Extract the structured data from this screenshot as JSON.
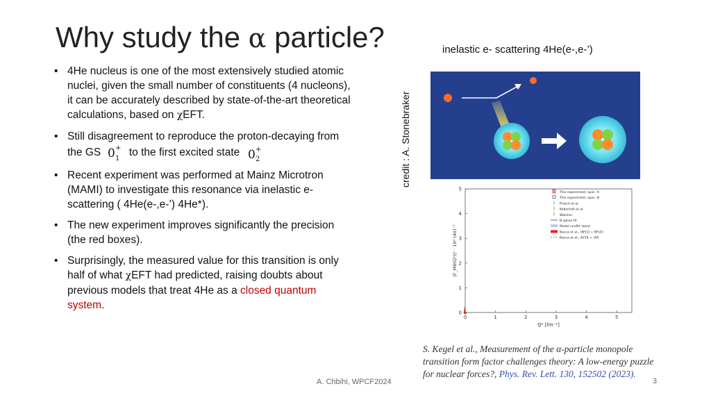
{
  "title_prefix": "Why study the ",
  "title_symbol": "α",
  "title_suffix": " particle?",
  "subtitle": "inelastic e- scattering  4He(e-,e-’)",
  "credit": "credit : A. Stonebraker",
  "bullets": {
    "b1_pre": "4He nucleus is one of the most extensively studied atomic nuclei, given the small number of constituents (4 nucleons), it can be accurately described by state-of-the-art theoretical calculations, based on ",
    "chi": "χ",
    "b1_post": "EFT.",
    "b2_pre": "Still disagreement to reproduce the proton-decaying from the GS",
    "b2_mid": "to the first excited state",
    "state_gs": {
      "base": "0",
      "sup": "+",
      "sub": "1"
    },
    "state_ex": {
      "base": "0",
      "sup": "+",
      "sub": "2"
    },
    "b3": "Recent experiment was performed at Mainz Microtron (MAMI) to investigate this resonance via inelastic e- scattering ( 4He(e-,e-’) 4He*).",
    "b4": "The new experiment improves significantly the precision (the red boxes).",
    "b5_pre": "Surprisingly,   the measured value for this transition is only half of what ",
    "b5_post": "EFT had predicted, raising doubts about previous models that treat 4He as a ",
    "b5_red": "closed quantum system",
    "b5_end": "."
  },
  "citation": {
    "text1": "S. Kegel et al., Measurement of the ",
    "alpha": "α",
    "text2": "-particle monopole transition form factor challenges theory: A low-energy puzzle for nuclear forces?, ",
    "journal": "Phys. Rev. Lett. 130, 152502 (2023)."
  },
  "footer": "A. Chbihi, WPCF2024",
  "page_number": "3",
  "colors": {
    "panel_bg": "#243f8e",
    "red_curve": "#e8231f",
    "blue_band": "#7f8fe0",
    "magenta": "#c43fc4",
    "accent_red": "#c00000"
  },
  "chart_data": {
    "type": "scatter",
    "xlabel": "Q² [fm⁻²]",
    "ylabel": "|F_M0(Q²)|² · 10⁴ (4π)⁻¹",
    "xlim": [
      0,
      5.5
    ],
    "ylim": [
      0,
      5
    ],
    "x_ticks": [
      "0",
      "1",
      "2",
      "3",
      "4",
      "5"
    ],
    "y_ticks": [
      "0",
      "1",
      "2",
      "3",
      "4",
      "5"
    ],
    "legend": {
      "placement": "top-right",
      "entries": [
        "This experiment, spec. A",
        "This experiment, spec. B",
        "Frosch et al.",
        "Kobschall et al.",
        "Walcher",
        "B-spline fit",
        "Model confid. band",
        "Bacca et al., (N³LO + N²LO)",
        "Bacca et al., AV18 + UIX"
      ]
    },
    "series": [
      {
        "name": "Bacca et al., (N³LO + N²LO)",
        "style": "band",
        "x": [
          0.0,
          0.2,
          0.4,
          0.6,
          0.8,
          1.0,
          1.2,
          1.4,
          1.6,
          1.8,
          2.0,
          2.4,
          2.8,
          3.2,
          3.6,
          4.0
        ],
        "y": [
          0.0,
          1.2,
          2.4,
          3.3,
          3.9,
          4.25,
          4.42,
          4.45,
          4.4,
          4.25,
          4.05,
          3.6,
          3.05,
          2.45,
          1.95,
          1.35
        ]
      },
      {
        "name": "Bacca et al., AV18 + UIX",
        "style": "dashed",
        "x": [
          0.0,
          0.2,
          0.4,
          0.6,
          0.8,
          1.0,
          1.2,
          1.4,
          1.6,
          1.8,
          2.0,
          2.4,
          2.8,
          3.2,
          3.6,
          4.0
        ],
        "y": [
          0.0,
          1.0,
          1.9,
          2.6,
          3.0,
          3.3,
          3.42,
          3.45,
          3.4,
          3.3,
          3.15,
          2.8,
          2.35,
          1.9,
          1.45,
          1.05
        ]
      },
      {
        "name": "Bacca et al., AV18 + UIX (outer)",
        "style": "dashed",
        "x": [
          0.0,
          0.4,
          0.8,
          1.2,
          1.6,
          2.0,
          2.4,
          2.8,
          3.2,
          3.6,
          4.0
        ],
        "y": [
          0.0,
          1.6,
          2.55,
          2.95,
          2.9,
          2.7,
          2.4,
          2.05,
          1.7,
          1.3,
          0.95
        ]
      },
      {
        "name": "B-spline fit",
        "style": "line",
        "x": [
          0.0,
          0.2,
          0.4,
          0.6,
          0.8,
          1.0,
          1.2,
          1.4,
          1.6,
          1.8,
          2.0,
          2.4,
          2.8,
          3.2,
          3.6,
          4.0,
          4.4,
          4.8,
          5.2,
          5.5
        ],
        "y": [
          0.0,
          0.5,
          0.95,
          1.35,
          1.7,
          1.98,
          2.15,
          2.22,
          2.2,
          2.12,
          2.0,
          1.75,
          1.5,
          1.22,
          0.98,
          0.75,
          0.55,
          0.38,
          0.25,
          0.18
        ]
      },
      {
        "name": "This experiment, spec. A",
        "style": "redbox",
        "x": [
          1.3,
          1.4,
          1.5,
          1.6,
          1.7,
          1.85,
          2.0
        ],
        "y": [
          2.2,
          2.35,
          2.3,
          2.2,
          2.2,
          2.15,
          2.05
        ]
      },
      {
        "name": "This experiment, spec. B",
        "style": "bluesquare",
        "x": [
          0.5,
          0.6,
          0.75,
          0.9,
          1.0,
          1.1,
          1.2,
          1.3,
          1.5,
          1.6,
          1.75,
          1.9,
          2.05,
          2.2,
          2.35,
          2.5,
          2.7,
          2.9,
          3.1,
          3.3,
          3.5,
          3.7,
          4.0,
          4.4,
          4.8
        ],
        "y": [
          1.05,
          1.2,
          1.45,
          1.65,
          1.85,
          1.95,
          2.05,
          2.1,
          2.25,
          2.2,
          2.15,
          2.05,
          2.0,
          1.95,
          1.9,
          1.8,
          1.7,
          1.55,
          1.4,
          1.3,
          1.15,
          1.0,
          0.7,
          0.45,
          0.3
        ]
      },
      {
        "name": "Frosch et al.",
        "style": "errorbar",
        "x": [
          0.2,
          0.3,
          0.4,
          0.5,
          0.6,
          0.7,
          0.8,
          0.9,
          1.0,
          1.1,
          1.2,
          1.3,
          1.4,
          1.5,
          1.6,
          1.7,
          1.8,
          1.9,
          2.0,
          2.2,
          2.4,
          2.6,
          2.8
        ],
        "y": [
          0.3,
          0.5,
          0.8,
          1.0,
          1.4,
          1.3,
          1.7,
          1.9,
          1.6,
          2.0,
          2.3,
          2.1,
          1.9,
          2.4,
          2.0,
          2.3,
          1.8,
          2.1,
          2.2,
          1.9,
          1.7,
          1.4,
          1.3
        ]
      }
    ]
  }
}
